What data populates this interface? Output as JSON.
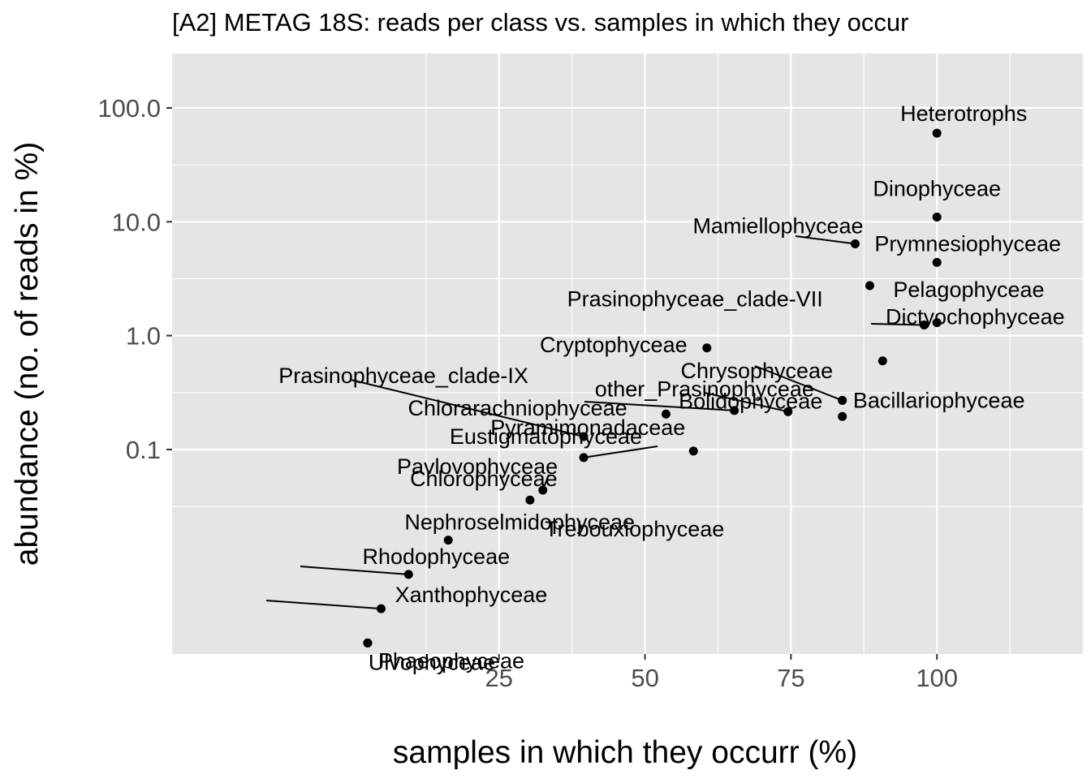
{
  "chart_data": {
    "type": "scatter",
    "title": "[A2] METAG 18S: reads per class vs. samples in which they occur",
    "xlabel": "samples in which they occurr (%)",
    "ylabel": "abundance (no. of reads in %)",
    "x_scale": "linear",
    "y_scale": "log10",
    "xlim": [
      -31,
      125
    ],
    "ylim": [
      0.0016,
      300
    ],
    "x_ticks": [
      25,
      50,
      75,
      100
    ],
    "x_tick_labels": [
      "25",
      "50",
      "75",
      "100"
    ],
    "y_ticks": [
      0.1,
      1,
      10,
      100
    ],
    "y_tick_labels": [
      "0.1",
      "1.0",
      "10.0",
      "100.0"
    ],
    "grid": true,
    "legend": "none",
    "colors": {
      "panel": "#e5e5e5",
      "grid": "#ffffff",
      "point": "#000000",
      "tick": "#4d4d4d"
    },
    "points": [
      {
        "label": "Heterotrophs",
        "x": 100,
        "y": 60
      },
      {
        "label": "Dinophyceae",
        "x": 100,
        "y": 11
      },
      {
        "label": "Mamiellophyceae",
        "x": 86,
        "y": 6.4
      },
      {
        "label": "Prymnesiophyceae",
        "x": 100,
        "y": 4.4
      },
      {
        "label": "Pelagophyceae",
        "x": 88.5,
        "y": 2.75
      },
      {
        "label": "Prasinophyceae_clade-VII",
        "x": 100,
        "y": 1.3
      },
      {
        "label": "Dictyochophyceae",
        "x": 97.8,
        "y": 1.24
      },
      {
        "label": "Chrysophyceae",
        "x": 90.7,
        "y": 0.6
      },
      {
        "label": "Cryptophyceae",
        "x": 60.6,
        "y": 0.78
      },
      {
        "label": "Bolidophyceae",
        "x": 83.8,
        "y": 0.27
      },
      {
        "label": "Bacillariophyceae",
        "x": 83.8,
        "y": 0.195
      },
      {
        "label": "other_Prasinophyceae",
        "x": 74.5,
        "y": 0.215
      },
      {
        "label": "Chlorarachniophyceae",
        "x": 65.3,
        "y": 0.22
      },
      {
        "label": "Eustigmatophyceae",
        "x": 53.6,
        "y": 0.205
      },
      {
        "label": "Prasinophyceae_clade-IX",
        "x": 39.5,
        "y": 0.13
      },
      {
        "label": "Pyramimonadaceae",
        "x": 58.3,
        "y": 0.097
      },
      {
        "label": "Pavlovophyceae",
        "x": 39.5,
        "y": 0.085
      },
      {
        "label": "Trebouxiophyceae",
        "x": 32.5,
        "y": 0.044
      },
      {
        "label": "Chlorophyceae",
        "x": 30.3,
        "y": 0.036
      },
      {
        "label": "Nephroselmidophyceae",
        "x": 16.3,
        "y": 0.016
      },
      {
        "label": "Rhodophyceae",
        "x": 9.5,
        "y": 0.008
      },
      {
        "label": "Xanthophyceae",
        "x": 4.8,
        "y": 0.004
      },
      {
        "label": "Ulvophyceae",
        "x": 2.5,
        "y": 0.002
      },
      {
        "label": "Phaeophyceae",
        "x": 2.5,
        "y": 0.002
      }
    ]
  }
}
